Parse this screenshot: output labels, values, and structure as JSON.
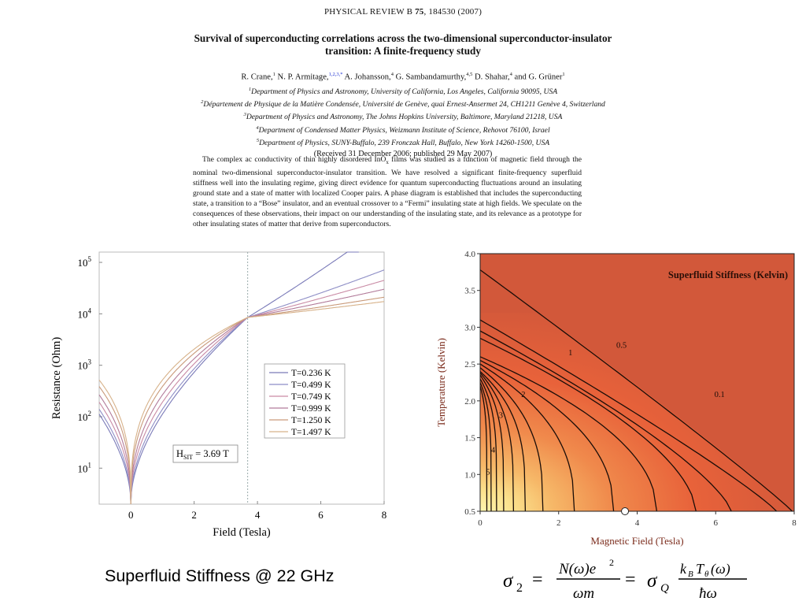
{
  "paper": {
    "journal_prefix": "PHYSICAL REVIEW B ",
    "journal_volume": "75",
    "journal_suffix": ", 184530 (2007)",
    "title_line1": "Survival of superconducting correlations across the two-dimensional superconductor-insulator",
    "title_line2": "transition: A finite-frequency study",
    "authors": [
      {
        "name": "R. Crane,",
        "sup": "1"
      },
      {
        "name": " N. P. Armitage,",
        "sup": "1,2,3,*"
      },
      {
        "name": " A. Johansson,",
        "sup": "4"
      },
      {
        "name": " G. Sambandamurthy,",
        "sup": "4,5"
      },
      {
        "name": " D. Shahar,",
        "sup": "4"
      },
      {
        "name": " and G. Grüner",
        "sup": "1"
      }
    ],
    "affiliations": [
      {
        "sup": "1",
        "text": "Department of Physics and Astronomy, University of California, Los Angeles, California 90095, USA"
      },
      {
        "sup": "2",
        "text": "Département de Physique de la Matière Condensée, Université de Genève, quai Ernest-Ansermet 24, CH1211 Genève 4, Switzerland"
      },
      {
        "sup": "3",
        "text": "Department of Physics and Astronomy, The Johns Hopkins University, Baltimore, Maryland 21218, USA"
      },
      {
        "sup": "4",
        "text": "Department of Condensed Matter Physics, Weizmann Institute of Science, Rehovot 76100, Israel"
      },
      {
        "sup": "5",
        "text": "Department of Physics, SUNY-Buffalo, 239 Fronczak Hall, Buffalo, New York 14260-1500, USA"
      }
    ],
    "received": "(Received 31 December 2006; published 29 May 2007)",
    "abstract_before": "The complex ac conductivity of thin highly disordered InO",
    "abstract_sub": "x",
    "abstract_after": " films was studied as a function of magnetic field through the nominal two-dimensional superconductor-insulator transition. We have resolved a significant finite-frequency superfluid stiffness well into the insulating regime, giving direct evidence for quantum superconducting fluctuations around an insulating ground state and a state of matter with localized Cooper pairs. A phase diagram is established that includes the superconducting state, a transition to a “Bose” insulator, and an eventual crossover to a “Fermi” insulating state at high fields. We speculate on the consequences of these observations, their impact on our understanding of the insulating state, and its relevance as a prototype for other insulating states of matter that derive from superconductors."
  },
  "slide": {
    "caption": "Superfluid Stiffness @ 22 GHz",
    "formula_lhs": "σ",
    "formula_lhs_sub": "2",
    "formula_num1": "N(ω)e",
    "formula_num1_sup": "2",
    "formula_den1": "ωm",
    "formula_mid": "σ",
    "formula_mid_sub": "Q",
    "formula_num2": "k",
    "formula_num2_sub": "B",
    "formula_num2_rest": "T",
    "formula_num2_sub2": "θ",
    "formula_num2_end": "(ω)",
    "formula_den2": "ħω",
    "equals": "="
  },
  "chart_data": [
    {
      "type": "line",
      "xlabel": "Field (Tesla)",
      "ylabel": "Resistance (Ohm)",
      "xlim": [
        -1,
        8
      ],
      "ylim_log10": [
        0.3,
        5.2
      ],
      "y_scale": "log",
      "x_ticks": [
        "0",
        "2",
        "4",
        "6",
        "8"
      ],
      "x_tick_values": [
        0,
        2,
        4,
        6,
        8
      ],
      "y_ticks": [
        {
          "base": "10",
          "exp": "5",
          "value": 5
        },
        {
          "base": "10",
          "exp": "4",
          "value": 4
        },
        {
          "base": "10",
          "exp": "3",
          "value": 3
        },
        {
          "base": "10",
          "exp": "2",
          "value": 2
        },
        {
          "base": "10",
          "exp": "1",
          "value": 1
        }
      ],
      "legend": [
        {
          "label": "T=0.236 K",
          "color": "#7a7ab8"
        },
        {
          "label": "T=0.499 K",
          "color": "#8e8ec6"
        },
        {
          "label": "T=0.749 K",
          "color": "#c98aa4"
        },
        {
          "label": "T=0.999 K",
          "color": "#b27b9a"
        },
        {
          "label": "T=1.250 K",
          "color": "#c99a7a"
        },
        {
          "label": "T=1.497 K",
          "color": "#d7b28a"
        }
      ],
      "legend_placement": "right",
      "annotation_prefix": "H",
      "annotation_sub": "SIT",
      "annotation_suffix": " = 3.69 T",
      "crossing_field": 3.69,
      "crossing_log10R": 3.93,
      "series_params": [
        {
          "r0": 0.3,
          "k": 1.6,
          "p": 0.5,
          "slope": 0.38,
          "xmax": 7.2
        },
        {
          "r0": 0.3,
          "k": 1.75,
          "p": 0.48,
          "slope": 0.197,
          "xmax": 8
        },
        {
          "r0": 0.3,
          "k": 1.95,
          "p": 0.45,
          "slope": 0.154,
          "xmax": 8
        },
        {
          "r0": 0.3,
          "k": 2.15,
          "p": 0.42,
          "slope": 0.117,
          "xmax": 8
        },
        {
          "r0": 0.3,
          "k": 2.35,
          "p": 0.38,
          "slope": 0.084,
          "xmax": 8
        },
        {
          "r0": 0.3,
          "k": 2.5,
          "p": 0.35,
          "slope": 0.066,
          "xmax": 8
        }
      ]
    },
    {
      "type": "heatmap",
      "title": "Superfluid Stiffness (Kelvin)",
      "xlabel": "Magnetic Field (Tesla)",
      "ylabel": "Temperature (Kelvin)",
      "xlim": [
        0,
        8
      ],
      "ylim": [
        0.5,
        4.0
      ],
      "x_ticks": [
        "0",
        "2",
        "4",
        "6",
        "8"
      ],
      "x_tick_values": [
        0,
        2,
        4,
        6,
        8
      ],
      "y_ticks": [
        "0.5",
        "1.0",
        "1.5",
        "2.0",
        "2.5",
        "3.0",
        "3.5",
        "4.0"
      ],
      "y_tick_values": [
        0.5,
        1.0,
        1.5,
        2.0,
        2.5,
        3.0,
        3.5,
        4.0
      ],
      "contour_labels": [
        {
          "label": "0.1",
          "x": 6.1,
          "y": 2.05
        },
        {
          "label": "0.5",
          "x": 3.6,
          "y": 2.72
        },
        {
          "label": "1",
          "x": 2.3,
          "y": 2.62
        },
        {
          "label": "2",
          "x": 1.1,
          "y": 2.05
        },
        {
          "label": "3",
          "x": 0.53,
          "y": 1.77
        },
        {
          "label": "4",
          "x": 0.33,
          "y": 1.3
        },
        {
          "label": "5",
          "x": 0.2,
          "y": 1.0
        }
      ],
      "marker": {
        "x": 3.69,
        "y": 0.5
      },
      "colors": {
        "high": "#fff7b0",
        "mid": "#f5a05a",
        "low": "#e8542e",
        "background": "#d2583a"
      }
    }
  ]
}
